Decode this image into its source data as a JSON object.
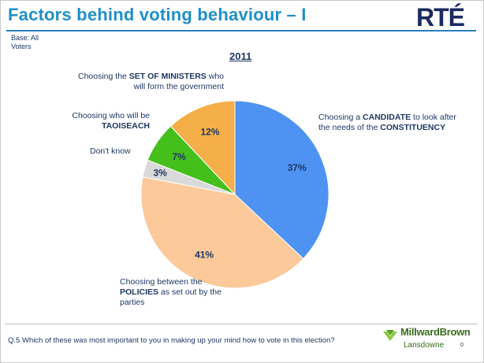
{
  "header": {
    "title": "Factors behind voting behaviour – I",
    "logo": "RTÉ"
  },
  "base": "Base: All Voters",
  "footer": {
    "question": "Q.5  Which of these was most important to you in making up your mind how to vote in this election?",
    "brand_line1": "MillwardBrown",
    "brand_line2": "Lansdowne",
    "page": "0"
  },
  "chart_data": {
    "type": "pie",
    "title": "2011",
    "slices": [
      {
        "label_pre": "Choosing a ",
        "label_bold": "CANDIDATE",
        "label_post": " to look after the needs of the ",
        "label_bold2": "CONSTITUENCY",
        "value": 37,
        "value_label": "37%",
        "color": "#4f93f2"
      },
      {
        "label_pre": "Choosing between the ",
        "label_bold": "POLICIES",
        "label_post": " as set out by the parties",
        "value": 41,
        "value_label": "41%",
        "color": "#fbc99a"
      },
      {
        "label_pre": "Don't know",
        "value": 3,
        "value_label": "3%",
        "color": "#d9d9d9"
      },
      {
        "label_pre": "Choosing who will be ",
        "label_bold": "TAOISEACH",
        "value": 7,
        "value_label": "7%",
        "color": "#44bf1c"
      },
      {
        "label_pre": "Choosing the ",
        "label_bold": "SET OF MINISTERS",
        "label_post": " who will form the government",
        "value": 12,
        "value_label": "12%",
        "color": "#f5af48"
      }
    ]
  }
}
